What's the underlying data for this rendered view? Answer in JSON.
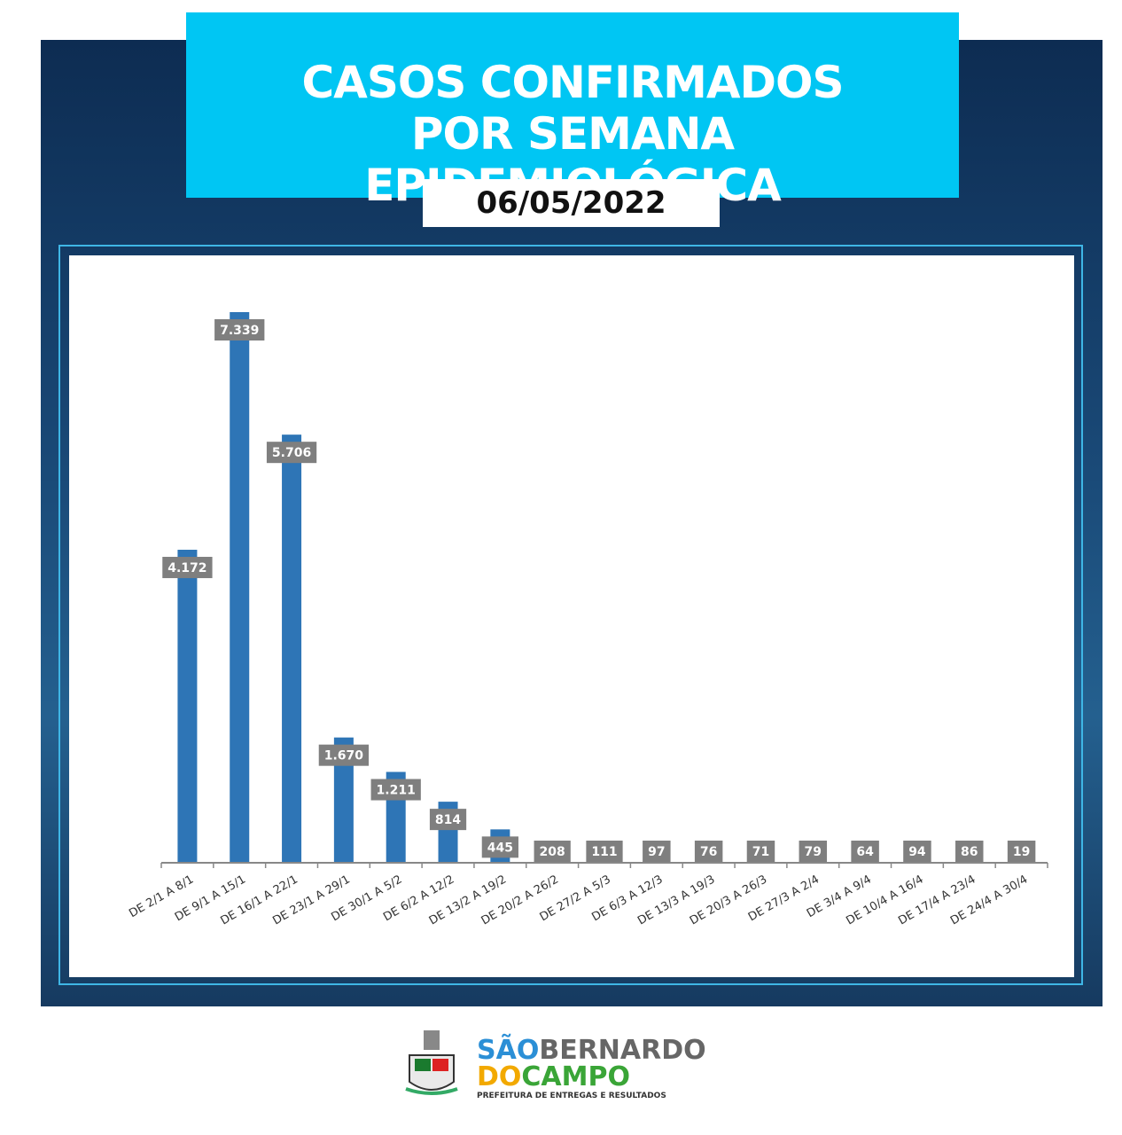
{
  "chart_data": {
    "type": "bar",
    "title": "CASOS CONFIRMADOS POR SEMANA EPIDEMIOLÓGICA",
    "subtitle": "06/05/2022",
    "categories": [
      "DE 2/1 A 8/1",
      "DE 9/1 A 15/1",
      "DE 16/1 A 22/1",
      "DE 23/1 A 29/1",
      "DE 30/1 A 5/2",
      "DE 6/2 A 12/2",
      "DE 13/2 A 19/2",
      "DE 20/2 A 26/2",
      "DE 27/2 A 5/3",
      "DE 6/3 A 12/3",
      "DE 13/3 A 19/3",
      "DE 20/3 A 26/3",
      "DE 27/3 A 2/4",
      "DE 3/4 A 9/4",
      "DE 10/4 A 16/4",
      "DE 17/4 A 23/4",
      "DE 24/4 A 30/4"
    ],
    "values": [
      4172,
      7339,
      5706,
      1670,
      1211,
      814,
      445,
      208,
      111,
      97,
      76,
      71,
      79,
      64,
      94,
      86,
      19
    ],
    "value_labels": [
      "4.172",
      "7.339",
      "5.706",
      "1.670",
      "1.211",
      "814",
      "445",
      "208",
      "111",
      "97",
      "76",
      "71",
      "79",
      "64",
      "94",
      "86",
      "19"
    ],
    "color": "#2e75b6"
  },
  "footer": {
    "logo_line1a": "SÃO",
    "logo_line1b": "BERNARDO",
    "logo_line2a": "DO",
    "logo_line2b": "CAMPO",
    "tagline": "PREFEITURA DE ENTREGAS E RESULTADOS"
  }
}
